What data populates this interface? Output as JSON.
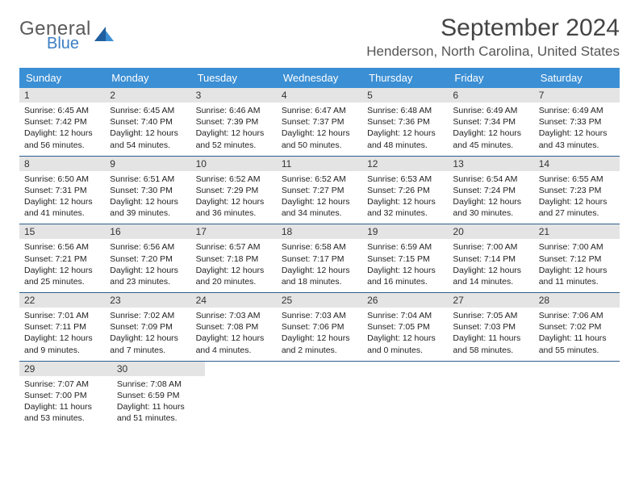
{
  "brand": {
    "general": "General",
    "blue": "Blue"
  },
  "title": "September 2024",
  "location": "Henderson, North Carolina, United States",
  "colors": {
    "header_bg": "#3b8fd4",
    "header_text": "#ffffff",
    "daynum_bg": "#e4e4e4",
    "week_border": "#2b5f8f",
    "logo_gray": "#5a5a5a",
    "logo_blue": "#3b7fc4",
    "title_color": "#444444",
    "location_color": "#555555"
  },
  "day_names": [
    "Sunday",
    "Monday",
    "Tuesday",
    "Wednesday",
    "Thursday",
    "Friday",
    "Saturday"
  ],
  "weeks": [
    [
      {
        "n": "1",
        "sr": "Sunrise: 6:45 AM",
        "ss": "Sunset: 7:42 PM",
        "dl1": "Daylight: 12 hours",
        "dl2": "and 56 minutes."
      },
      {
        "n": "2",
        "sr": "Sunrise: 6:45 AM",
        "ss": "Sunset: 7:40 PM",
        "dl1": "Daylight: 12 hours",
        "dl2": "and 54 minutes."
      },
      {
        "n": "3",
        "sr": "Sunrise: 6:46 AM",
        "ss": "Sunset: 7:39 PM",
        "dl1": "Daylight: 12 hours",
        "dl2": "and 52 minutes."
      },
      {
        "n": "4",
        "sr": "Sunrise: 6:47 AM",
        "ss": "Sunset: 7:37 PM",
        "dl1": "Daylight: 12 hours",
        "dl2": "and 50 minutes."
      },
      {
        "n": "5",
        "sr": "Sunrise: 6:48 AM",
        "ss": "Sunset: 7:36 PM",
        "dl1": "Daylight: 12 hours",
        "dl2": "and 48 minutes."
      },
      {
        "n": "6",
        "sr": "Sunrise: 6:49 AM",
        "ss": "Sunset: 7:34 PM",
        "dl1": "Daylight: 12 hours",
        "dl2": "and 45 minutes."
      },
      {
        "n": "7",
        "sr": "Sunrise: 6:49 AM",
        "ss": "Sunset: 7:33 PM",
        "dl1": "Daylight: 12 hours",
        "dl2": "and 43 minutes."
      }
    ],
    [
      {
        "n": "8",
        "sr": "Sunrise: 6:50 AM",
        "ss": "Sunset: 7:31 PM",
        "dl1": "Daylight: 12 hours",
        "dl2": "and 41 minutes."
      },
      {
        "n": "9",
        "sr": "Sunrise: 6:51 AM",
        "ss": "Sunset: 7:30 PM",
        "dl1": "Daylight: 12 hours",
        "dl2": "and 39 minutes."
      },
      {
        "n": "10",
        "sr": "Sunrise: 6:52 AM",
        "ss": "Sunset: 7:29 PM",
        "dl1": "Daylight: 12 hours",
        "dl2": "and 36 minutes."
      },
      {
        "n": "11",
        "sr": "Sunrise: 6:52 AM",
        "ss": "Sunset: 7:27 PM",
        "dl1": "Daylight: 12 hours",
        "dl2": "and 34 minutes."
      },
      {
        "n": "12",
        "sr": "Sunrise: 6:53 AM",
        "ss": "Sunset: 7:26 PM",
        "dl1": "Daylight: 12 hours",
        "dl2": "and 32 minutes."
      },
      {
        "n": "13",
        "sr": "Sunrise: 6:54 AM",
        "ss": "Sunset: 7:24 PM",
        "dl1": "Daylight: 12 hours",
        "dl2": "and 30 minutes."
      },
      {
        "n": "14",
        "sr": "Sunrise: 6:55 AM",
        "ss": "Sunset: 7:23 PM",
        "dl1": "Daylight: 12 hours",
        "dl2": "and 27 minutes."
      }
    ],
    [
      {
        "n": "15",
        "sr": "Sunrise: 6:56 AM",
        "ss": "Sunset: 7:21 PM",
        "dl1": "Daylight: 12 hours",
        "dl2": "and 25 minutes."
      },
      {
        "n": "16",
        "sr": "Sunrise: 6:56 AM",
        "ss": "Sunset: 7:20 PM",
        "dl1": "Daylight: 12 hours",
        "dl2": "and 23 minutes."
      },
      {
        "n": "17",
        "sr": "Sunrise: 6:57 AM",
        "ss": "Sunset: 7:18 PM",
        "dl1": "Daylight: 12 hours",
        "dl2": "and 20 minutes."
      },
      {
        "n": "18",
        "sr": "Sunrise: 6:58 AM",
        "ss": "Sunset: 7:17 PM",
        "dl1": "Daylight: 12 hours",
        "dl2": "and 18 minutes."
      },
      {
        "n": "19",
        "sr": "Sunrise: 6:59 AM",
        "ss": "Sunset: 7:15 PM",
        "dl1": "Daylight: 12 hours",
        "dl2": "and 16 minutes."
      },
      {
        "n": "20",
        "sr": "Sunrise: 7:00 AM",
        "ss": "Sunset: 7:14 PM",
        "dl1": "Daylight: 12 hours",
        "dl2": "and 14 minutes."
      },
      {
        "n": "21",
        "sr": "Sunrise: 7:00 AM",
        "ss": "Sunset: 7:12 PM",
        "dl1": "Daylight: 12 hours",
        "dl2": "and 11 minutes."
      }
    ],
    [
      {
        "n": "22",
        "sr": "Sunrise: 7:01 AM",
        "ss": "Sunset: 7:11 PM",
        "dl1": "Daylight: 12 hours",
        "dl2": "and 9 minutes."
      },
      {
        "n": "23",
        "sr": "Sunrise: 7:02 AM",
        "ss": "Sunset: 7:09 PM",
        "dl1": "Daylight: 12 hours",
        "dl2": "and 7 minutes."
      },
      {
        "n": "24",
        "sr": "Sunrise: 7:03 AM",
        "ss": "Sunset: 7:08 PM",
        "dl1": "Daylight: 12 hours",
        "dl2": "and 4 minutes."
      },
      {
        "n": "25",
        "sr": "Sunrise: 7:03 AM",
        "ss": "Sunset: 7:06 PM",
        "dl1": "Daylight: 12 hours",
        "dl2": "and 2 minutes."
      },
      {
        "n": "26",
        "sr": "Sunrise: 7:04 AM",
        "ss": "Sunset: 7:05 PM",
        "dl1": "Daylight: 12 hours",
        "dl2": "and 0 minutes."
      },
      {
        "n": "27",
        "sr": "Sunrise: 7:05 AM",
        "ss": "Sunset: 7:03 PM",
        "dl1": "Daylight: 11 hours",
        "dl2": "and 58 minutes."
      },
      {
        "n": "28",
        "sr": "Sunrise: 7:06 AM",
        "ss": "Sunset: 7:02 PM",
        "dl1": "Daylight: 11 hours",
        "dl2": "and 55 minutes."
      }
    ],
    [
      {
        "n": "29",
        "sr": "Sunrise: 7:07 AM",
        "ss": "Sunset: 7:00 PM",
        "dl1": "Daylight: 11 hours",
        "dl2": "and 53 minutes."
      },
      {
        "n": "30",
        "sr": "Sunrise: 7:08 AM",
        "ss": "Sunset: 6:59 PM",
        "dl1": "Daylight: 11 hours",
        "dl2": "and 51 minutes."
      },
      null,
      null,
      null,
      null,
      null
    ]
  ]
}
